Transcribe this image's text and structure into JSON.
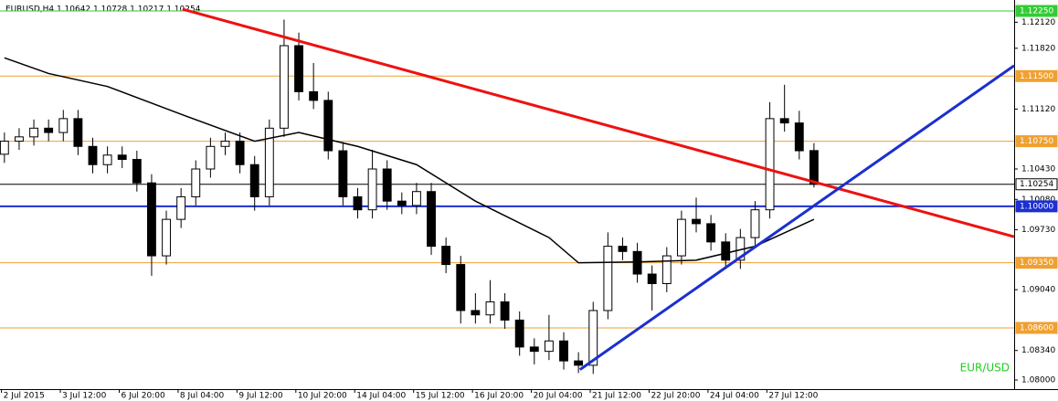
{
  "chart_data": {
    "type": "candlestick",
    "title": "EURUSD,H4  1.10642 1.10728 1.10217 1.10254",
    "watermark": "EUR/USD",
    "open": [
      1.106,
      1.1075,
      1.108,
      1.109,
      1.1085,
      1.1101,
      1.1069,
      1.1048,
      1.1059,
      1.1054,
      1.1027,
      1.0943,
      1.0985,
      1.1011,
      1.1043,
      1.1069,
      1.1075,
      1.1048,
      1.1011,
      1.109,
      1.1185,
      1.1132,
      1.1122,
      1.1064,
      1.1011,
      1.0996,
      1.1043,
      1.1006,
      1.1001,
      1.1017,
      1.0954,
      1.0933,
      1.088,
      1.0875,
      1.089,
      1.0869,
      1.0838,
      1.0833,
      1.0845,
      1.0822,
      1.0817,
      1.088,
      1.0954,
      1.0948,
      1.0922,
      1.0911,
      1.0943,
      1.0985,
      1.098,
      1.0959,
      1.0938,
      1.0964,
      1.0996,
      1.1101,
      1.1096,
      1.10642
    ],
    "high": [
      1.1085,
      1.109,
      1.11,
      1.11,
      1.1111,
      1.1111,
      1.1079,
      1.1069,
      1.1069,
      1.1064,
      1.1037,
      1.0995,
      1.1021,
      1.1053,
      1.1079,
      1.1085,
      1.1085,
      1.1058,
      1.11,
      1.1215,
      1.12,
      1.1165,
      1.1132,
      1.1074,
      1.1021,
      1.1065,
      1.1053,
      1.1016,
      1.1027,
      1.1027,
      1.0964,
      1.0943,
      1.09,
      1.0915,
      1.09,
      1.0879,
      1.0848,
      1.0875,
      1.0855,
      1.0832,
      1.089,
      1.097,
      1.0964,
      1.0958,
      1.0932,
      1.0953,
      1.0995,
      1.101,
      1.099,
      1.0969,
      1.0974,
      1.1006,
      1.112,
      1.114,
      1.111,
      1.10728
    ],
    "low": [
      1.105,
      1.1065,
      1.107,
      1.1075,
      1.1075,
      1.1059,
      1.1038,
      1.1038,
      1.1044,
      1.1017,
      1.092,
      1.0933,
      1.0975,
      1.1001,
      1.1033,
      1.1059,
      1.1038,
      1.0995,
      1.1001,
      1.108,
      1.1122,
      1.1112,
      1.1054,
      1.1001,
      1.0986,
      1.0986,
      1.0996,
      1.0991,
      1.0991,
      1.0944,
      1.0923,
      1.0865,
      1.0865,
      1.0865,
      1.0859,
      1.0828,
      1.0818,
      1.0823,
      1.0812,
      1.0808,
      1.0807,
      1.087,
      1.0938,
      1.0912,
      1.088,
      1.0901,
      1.0933,
      1.097,
      1.0949,
      1.0928,
      1.0928,
      1.0954,
      1.0986,
      1.1086,
      1.1054,
      1.10217
    ],
    "close": [
      1.1075,
      1.108,
      1.109,
      1.1085,
      1.1101,
      1.1069,
      1.1048,
      1.1059,
      1.1054,
      1.1027,
      1.0943,
      1.0985,
      1.1011,
      1.1043,
      1.1069,
      1.1075,
      1.1048,
      1.1011,
      1.109,
      1.1185,
      1.1132,
      1.1122,
      1.1064,
      1.1011,
      1.0996,
      1.1043,
      1.1006,
      1.1001,
      1.1017,
      1.0954,
      1.0933,
      1.088,
      1.0875,
      1.089,
      1.0869,
      1.0838,
      1.0833,
      1.0845,
      1.0822,
      1.0817,
      1.088,
      1.0954,
      1.0948,
      1.0922,
      1.0911,
      1.0943,
      1.0985,
      1.098,
      1.0959,
      1.0938,
      1.0964,
      1.0996,
      1.1101,
      1.1096,
      1.1064,
      1.10254
    ],
    "ma": {
      "color": "#000000",
      "x": [
        0,
        3,
        7,
        12,
        17,
        20,
        24,
        28,
        32,
        37,
        39,
        43,
        47,
        51,
        55
      ],
      "values": [
        1.1171,
        1.1153,
        1.1138,
        1.1106,
        1.1075,
        1.1085,
        1.1069,
        1.1048,
        1.1006,
        1.0964,
        1.0935,
        1.0936,
        1.0938,
        1.0954,
        1.0985
      ]
    },
    "trendlines": [
      {
        "color": "#ee1111",
        "x": [
          12.1,
          68.6
        ],
        "values": [
          1.1227,
          1.0965
        ]
      },
      {
        "color": "#1c2fd0",
        "x": [
          39.1,
          68.6
        ],
        "values": [
          1.0812,
          1.1162
        ]
      }
    ],
    "levels": [
      {
        "value": 1.1225,
        "label": "1.12250",
        "color": "#33cc33"
      },
      {
        "value": 1.115,
        "label": "1.11500",
        "color": "#f0a030"
      },
      {
        "value": 1.1075,
        "label": "1.10750",
        "color": "#f0a030"
      },
      {
        "value": 1.10254,
        "label": "1.10254",
        "color": "#000000"
      },
      {
        "value": 1.1,
        "label": "1.10000",
        "color": "#1c2fd0"
      },
      {
        "value": 1.0935,
        "label": "1.09350",
        "color": "#f0a030"
      },
      {
        "value": 1.086,
        "label": "1.08600",
        "color": "#f0a030"
      }
    ],
    "ylim": [
      1.07895,
      1.12376
    ],
    "yticks": [
      {
        "value": 1.1212,
        "label": "1.12120"
      },
      {
        "value": 1.1182,
        "label": "1.11820"
      },
      {
        "value": 1.1112,
        "label": "1.11120"
      },
      {
        "value": 1.1043,
        "label": "1.10430"
      },
      {
        "value": 1.1008,
        "label": "1.10080"
      },
      {
        "value": 1.0973,
        "label": "1.09730"
      },
      {
        "value": 1.0904,
        "label": "1.09040"
      },
      {
        "value": 1.0834,
        "label": "1.08340"
      },
      {
        "value": 1.08,
        "label": "1.08000"
      }
    ],
    "xlim": [
      -0.3,
      68.6
    ],
    "xticks": [
      {
        "value": -0.2,
        "label": "2 Jul 2015"
      },
      {
        "value": 3.8,
        "label": "3 Jul 12:00"
      },
      {
        "value": 7.8,
        "label": "6 Jul 20:00"
      },
      {
        "value": 11.8,
        "label": "8 Jul 04:00"
      },
      {
        "value": 15.8,
        "label": "9 Jul 12:00"
      },
      {
        "value": 19.8,
        "label": "10 Jul 20:00"
      },
      {
        "value": 23.8,
        "label": "14 Jul 04:00"
      },
      {
        "value": 27.8,
        "label": "15 Jul 12:00"
      },
      {
        "value": 31.8,
        "label": "16 Jul 20:00"
      },
      {
        "value": 35.8,
        "label": "20 Jul 04:00"
      },
      {
        "value": 39.8,
        "label": "21 Jul 12:00"
      },
      {
        "value": 43.8,
        "label": "22 Jul 20:00"
      },
      {
        "value": 47.8,
        "label": "24 Jul 04:00"
      },
      {
        "value": 51.8,
        "label": "27 Jul 12:00"
      }
    ]
  }
}
